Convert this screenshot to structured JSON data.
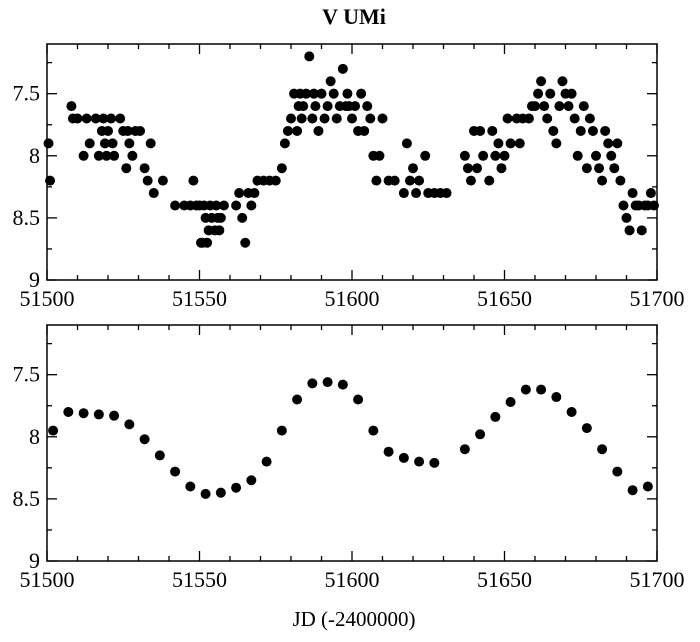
{
  "chart_data": [
    {
      "type": "scatter",
      "title": "V UMi",
      "xlabel": "",
      "ylabel": "",
      "xlim": [
        51500,
        51700
      ],
      "ylim": [
        9,
        7.1
      ],
      "y_inverted": true,
      "x_ticks": [
        "51500",
        "51550",
        "51600",
        "51650",
        "51700"
      ],
      "y_ticks": [
        "7.5",
        "8",
        "8.5",
        "9"
      ],
      "marker_color": "#000000",
      "points": [
        [
          51500.5,
          7.9
        ],
        [
          51501,
          8.2
        ],
        [
          51508,
          7.6
        ],
        [
          51508.5,
          7.7
        ],
        [
          51510,
          7.7
        ],
        [
          51512,
          8.0
        ],
        [
          51513,
          7.7
        ],
        [
          51514,
          7.9
        ],
        [
          51516,
          7.7
        ],
        [
          51517,
          8.0
        ],
        [
          51518,
          7.8
        ],
        [
          51518.5,
          7.7
        ],
        [
          51519,
          7.9
        ],
        [
          51519.5,
          8.0
        ],
        [
          51520,
          7.8
        ],
        [
          51521,
          7.7
        ],
        [
          51521.5,
          7.9
        ],
        [
          51522,
          8.0
        ],
        [
          51524,
          7.7
        ],
        [
          51525,
          7.8
        ],
        [
          51526,
          8.1
        ],
        [
          51526.5,
          7.8
        ],
        [
          51527,
          7.9
        ],
        [
          51528,
          8.0
        ],
        [
          51529,
          7.8
        ],
        [
          51530.5,
          7.8
        ],
        [
          51532,
          8.1
        ],
        [
          51533,
          8.2
        ],
        [
          51534,
          7.9
        ],
        [
          51535,
          8.3
        ],
        [
          51538,
          8.2
        ],
        [
          51542,
          8.4
        ],
        [
          51545,
          8.4
        ],
        [
          51547,
          8.4
        ],
        [
          51548,
          8.2
        ],
        [
          51549,
          8.4
        ],
        [
          51550,
          8.4
        ],
        [
          51550.5,
          8.7
        ],
        [
          51551,
          8.7
        ],
        [
          51551.5,
          8.4
        ],
        [
          51552,
          8.5
        ],
        [
          51552.5,
          8.7
        ],
        [
          51553,
          8.6
        ],
        [
          51553.5,
          8.4
        ],
        [
          51554,
          8.5
        ],
        [
          51555,
          8.6
        ],
        [
          51555.5,
          8.4
        ],
        [
          51556,
          8.5
        ],
        [
          51556.5,
          8.6
        ],
        [
          51557,
          8.5
        ],
        [
          51558,
          8.4
        ],
        [
          51562,
          8.4
        ],
        [
          51563,
          8.3
        ],
        [
          51564,
          8.5
        ],
        [
          51565,
          8.7
        ],
        [
          51566,
          8.3
        ],
        [
          51567,
          8.4
        ],
        [
          51568,
          8.3
        ],
        [
          51569,
          8.2
        ],
        [
          51571,
          8.2
        ],
        [
          51573,
          8.2
        ],
        [
          51575,
          8.2
        ],
        [
          51577,
          8.1
        ],
        [
          51578,
          7.9
        ],
        [
          51579,
          7.8
        ],
        [
          51580,
          7.7
        ],
        [
          51581,
          7.5
        ],
        [
          51582,
          7.8
        ],
        [
          51582.5,
          7.6
        ],
        [
          51583,
          7.5
        ],
        [
          51583.5,
          7.7
        ],
        [
          51584,
          7.6
        ],
        [
          51585,
          7.5
        ],
        [
          51586,
          7.2
        ],
        [
          51587,
          7.7
        ],
        [
          51587.5,
          7.5
        ],
        [
          51588,
          7.6
        ],
        [
          51589,
          7.8
        ],
        [
          51590,
          7.5
        ],
        [
          51591,
          7.7
        ],
        [
          51592,
          7.6
        ],
        [
          51593,
          7.4
        ],
        [
          51594,
          7.5
        ],
        [
          51595,
          7.7
        ],
        [
          51596,
          7.6
        ],
        [
          51597,
          7.3
        ],
        [
          51598,
          7.6
        ],
        [
          51598.5,
          7.5
        ],
        [
          51599,
          7.6
        ],
        [
          51600,
          7.7
        ],
        [
          51601,
          7.6
        ],
        [
          51602,
          7.8
        ],
        [
          51603,
          7.5
        ],
        [
          51604,
          7.8
        ],
        [
          51605,
          7.6
        ],
        [
          51606,
          7.7
        ],
        [
          51607,
          8.0
        ],
        [
          51608,
          8.2
        ],
        [
          51609,
          8.0
        ],
        [
          51610,
          7.7
        ],
        [
          51612,
          8.2
        ],
        [
          51614,
          8.2
        ],
        [
          51617,
          8.3
        ],
        [
          51618,
          7.9
        ],
        [
          51619,
          8.2
        ],
        [
          51620,
          8.1
        ],
        [
          51621,
          8.3
        ],
        [
          51622,
          8.2
        ],
        [
          51624,
          8.0
        ],
        [
          51625,
          8.3
        ],
        [
          51627,
          8.3
        ],
        [
          51629,
          8.3
        ],
        [
          51631,
          8.3
        ],
        [
          51637,
          8.0
        ],
        [
          51638,
          8.1
        ],
        [
          51639,
          8.2
        ],
        [
          51640,
          7.8
        ],
        [
          51641,
          8.1
        ],
        [
          51642,
          7.8
        ],
        [
          51643,
          8.0
        ],
        [
          51645,
          8.2
        ],
        [
          51646,
          7.8
        ],
        [
          51647,
          8.0
        ],
        [
          51648,
          7.9
        ],
        [
          51649,
          8.1
        ],
        [
          51650,
          8.0
        ],
        [
          51651,
          7.7
        ],
        [
          51652,
          7.9
        ],
        [
          51654,
          7.7
        ],
        [
          51655,
          7.9
        ],
        [
          51656,
          7.7
        ],
        [
          51658,
          7.7
        ],
        [
          51659,
          7.6
        ],
        [
          51660,
          7.6
        ],
        [
          51661,
          7.5
        ],
        [
          51662,
          7.4
        ],
        [
          51663,
          7.6
        ],
        [
          51664,
          7.7
        ],
        [
          51665,
          7.5
        ],
        [
          51666,
          7.8
        ],
        [
          51667,
          7.9
        ],
        [
          51668,
          7.6
        ],
        [
          51669,
          7.4
        ],
        [
          51670,
          7.5
        ],
        [
          51671,
          7.6
        ],
        [
          51672,
          7.5
        ],
        [
          51673,
          7.7
        ],
        [
          51674,
          8.0
        ],
        [
          51675,
          7.8
        ],
        [
          51676,
          7.6
        ],
        [
          51677,
          8.1
        ],
        [
          51678,
          7.7
        ],
        [
          51679,
          7.8
        ],
        [
          51680,
          8.0
        ],
        [
          51681,
          8.1
        ],
        [
          51682,
          8.2
        ],
        [
          51683,
          7.8
        ],
        [
          51684,
          7.9
        ],
        [
          51685,
          8.0
        ],
        [
          51686,
          8.1
        ],
        [
          51687,
          7.9
        ],
        [
          51688,
          8.2
        ],
        [
          51689,
          8.4
        ],
        [
          51690,
          8.5
        ],
        [
          51691,
          8.6
        ],
        [
          51692,
          8.3
        ],
        [
          51693,
          8.4
        ],
        [
          51694,
          8.4
        ],
        [
          51695,
          8.6
        ],
        [
          51696,
          8.4
        ],
        [
          51697,
          8.4
        ],
        [
          51698,
          8.3
        ],
        [
          51699,
          8.4
        ]
      ]
    },
    {
      "type": "scatter",
      "title": "",
      "xlabel": "JD (-2400000)",
      "ylabel": "",
      "xlim": [
        51500,
        51700
      ],
      "ylim": [
        9,
        7.1
      ],
      "y_inverted": true,
      "x_ticks": [
        "51500",
        "51550",
        "51600",
        "51650",
        "51700"
      ],
      "y_ticks": [
        "7.5",
        "8",
        "8.5",
        "9"
      ],
      "marker_color": "#000000",
      "points": [
        [
          51502,
          7.95
        ],
        [
          51507,
          7.8
        ],
        [
          51512,
          7.81
        ],
        [
          51517,
          7.82
        ],
        [
          51522,
          7.83
        ],
        [
          51527,
          7.9
        ],
        [
          51532,
          8.02
        ],
        [
          51537,
          8.15
        ],
        [
          51542,
          8.28
        ],
        [
          51547,
          8.4
        ],
        [
          51552,
          8.46
        ],
        [
          51557,
          8.45
        ],
        [
          51562,
          8.41
        ],
        [
          51567,
          8.35
        ],
        [
          51572,
          8.2
        ],
        [
          51577,
          7.95
        ],
        [
          51582,
          7.7
        ],
        [
          51587,
          7.57
        ],
        [
          51592,
          7.56
        ],
        [
          51597,
          7.58
        ],
        [
          51602,
          7.7
        ],
        [
          51607,
          7.95
        ],
        [
          51612,
          8.12
        ],
        [
          51617,
          8.17
        ],
        [
          51622,
          8.2
        ],
        [
          51627,
          8.21
        ],
        [
          51637,
          8.1
        ],
        [
          51642,
          7.98
        ],
        [
          51647,
          7.84
        ],
        [
          51652,
          7.72
        ],
        [
          51657,
          7.62
        ],
        [
          51662,
          7.62
        ],
        [
          51667,
          7.68
        ],
        [
          51672,
          7.8
        ],
        [
          51677,
          7.93
        ],
        [
          51682,
          8.1
        ],
        [
          51687,
          8.28
        ],
        [
          51692,
          8.43
        ],
        [
          51697,
          8.4
        ]
      ]
    }
  ]
}
